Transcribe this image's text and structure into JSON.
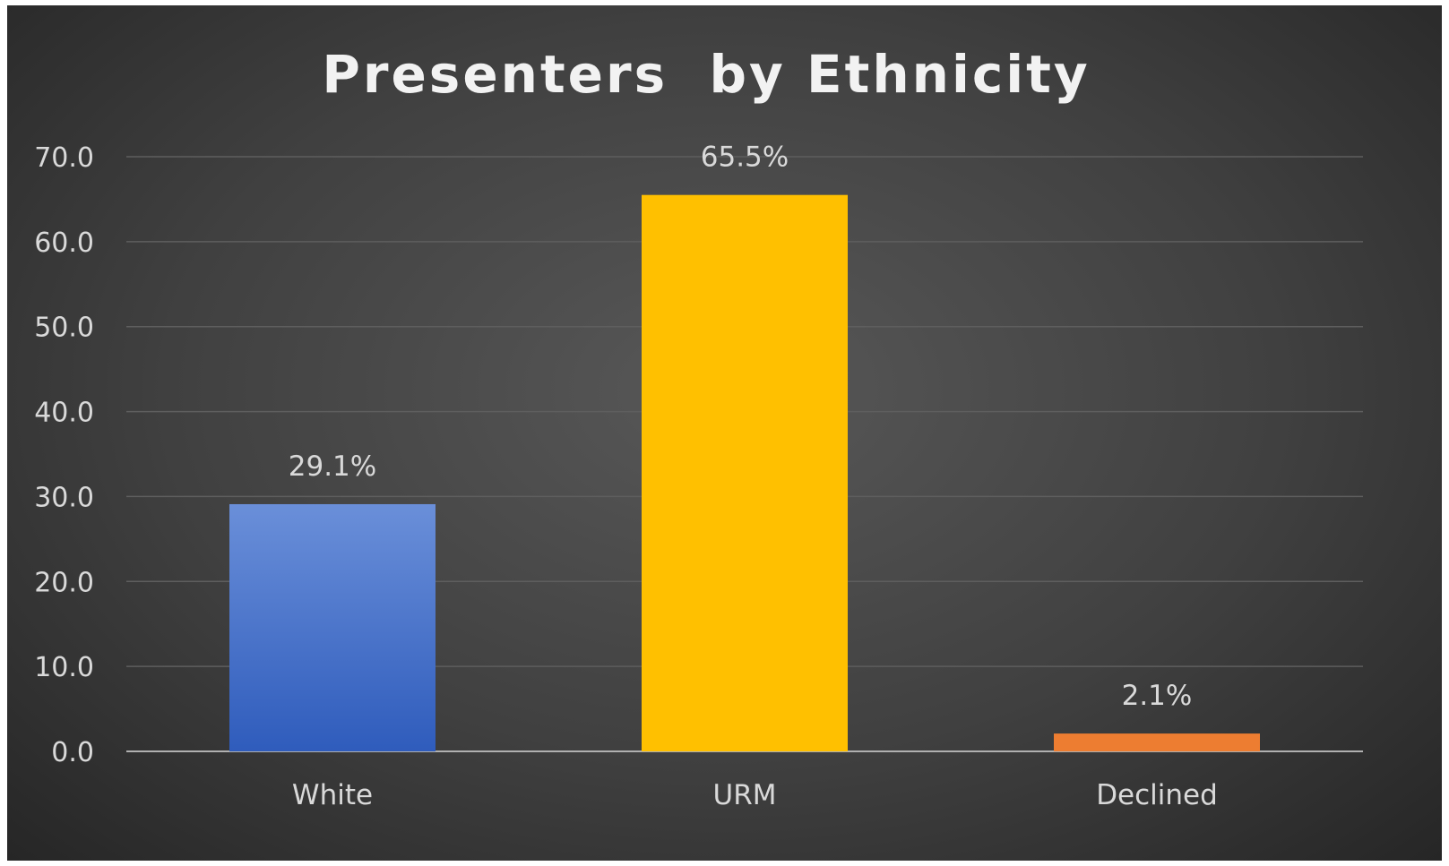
{
  "chart_data": {
    "type": "bar",
    "title": "Presenters  by Ethnicity",
    "categories": [
      "White",
      "URM",
      "Declined"
    ],
    "values": [
      29.1,
      65.5,
      2.1
    ],
    "data_labels": [
      "29.1%",
      "65.5%",
      "2.1%"
    ],
    "ylim": [
      0,
      70
    ],
    "y_ticks": [
      "0.0",
      "10.0",
      "20.0",
      "30.0",
      "40.0",
      "50.0",
      "60.0",
      "70.0"
    ],
    "grid": true,
    "legend": "none",
    "colors": {
      "White": [
        "#6a8fd9",
        "#2f5cbc"
      ],
      "URM": [
        "#ffc000",
        "#ffc000"
      ],
      "Declined": [
        "#ed7d31",
        "#ed7d31"
      ],
      "background": "#404040"
    }
  }
}
